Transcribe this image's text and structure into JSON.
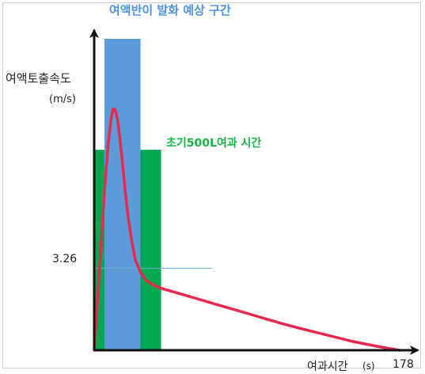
{
  "chart_data": {
    "type": "line",
    "title": "",
    "xlabel": "여과시간",
    "xlabel_unit": "(s)",
    "ylabel": "여액토출속도",
    "ylabel_unit": "(m/s)",
    "xlim": [
      0,
      178
    ],
    "ylim": [
      0,
      12.4
    ],
    "x_ticks": [
      "178"
    ],
    "y_ticks": [
      "3.26"
    ],
    "regions": [
      {
        "label": "여액반이 발화 예상 구간",
        "x_start": 6,
        "x_end": 27,
        "color": "#5b9bd8"
      },
      {
        "label": "초기500L여과 시간",
        "x_start": 0,
        "x_end": 39,
        "color": "#00a84f"
      }
    ],
    "reference_line": {
      "y": 3.26,
      "x_end": 69,
      "color": "#6fa8dc"
    },
    "series": [
      {
        "color": "#e8294e",
        "x": [
          0,
          2,
          4,
          6,
          8,
          10,
          11,
          12,
          13,
          14,
          16,
          18,
          20,
          22,
          24,
          27,
          30,
          33,
          36,
          40,
          50,
          60,
          70,
          80,
          90,
          100,
          110,
          120,
          130,
          140,
          150,
          160,
          170,
          178
        ],
        "y": [
          0,
          2.0,
          4.2,
          6.3,
          8.1,
          9.3,
          9.6,
          9.6,
          9.4,
          9.0,
          7.8,
          6.4,
          5.2,
          4.3,
          3.6,
          3.1,
          2.8,
          2.65,
          2.55,
          2.45,
          2.25,
          2.05,
          1.85,
          1.65,
          1.45,
          1.25,
          1.05,
          0.87,
          0.7,
          0.53,
          0.36,
          0.22,
          0.09,
          0
        ]
      }
    ]
  }
}
